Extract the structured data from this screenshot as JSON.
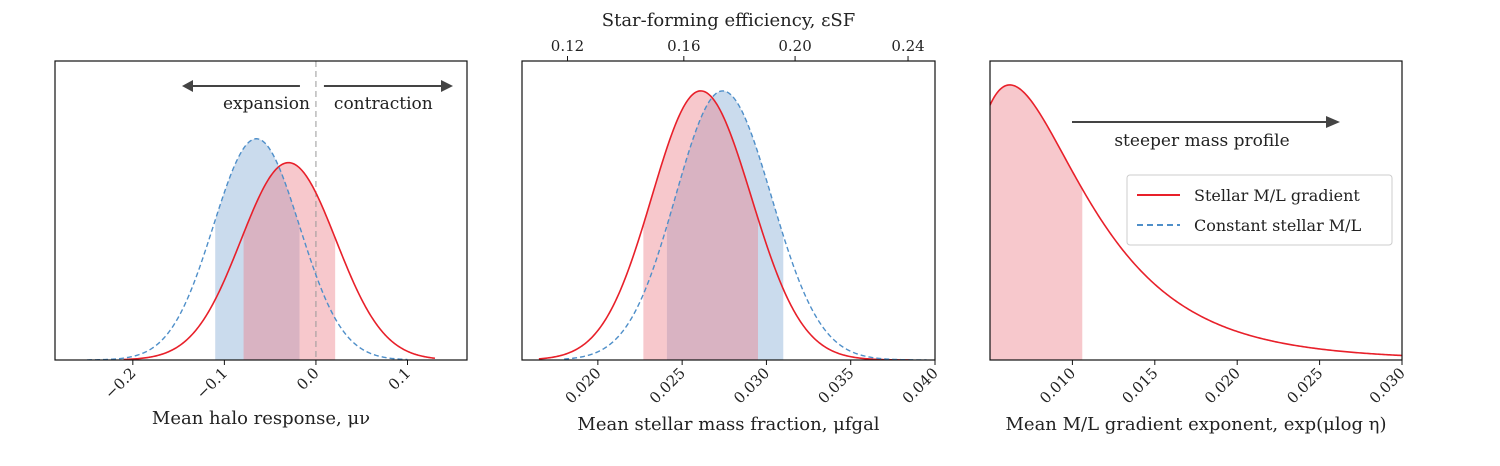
{
  "colors": {
    "red": "#e8202a",
    "blue": "#4f8fc9",
    "red_fill": "#f4b6bb",
    "blue_fill": "#b8cfe7",
    "overlap_fill": "#d9b3c2",
    "arrow": "#444444"
  },
  "legend": {
    "red": "Stellar M/L gradient",
    "blue": "Constant stellar M/L"
  },
  "chart_data": [
    {
      "type": "line",
      "xlabel": "Mean halo response, μν",
      "xlim": [
        -0.285,
        0.165
      ],
      "xticks": [
        -0.2,
        -0.1,
        0.0,
        0.1
      ],
      "xtick_labels": [
        "−0.2",
        "−0.1",
        "0.0",
        "0.1"
      ],
      "annotations": {
        "left": "expansion",
        "right": "contraction",
        "divider_x": 0.0
      },
      "series": [
        {
          "name": "Stellar M/L gradient",
          "style": "solid",
          "mean": -0.03,
          "sigma_left": 0.052,
          "sigma_right": 0.052,
          "peak": 0.66,
          "shade": [
            -0.079,
            0.021
          ],
          "x_range": [
            -0.21,
            0.13
          ]
        },
        {
          "name": "Constant stellar M/L",
          "style": "dashed",
          "mean": -0.065,
          "sigma_left": 0.047,
          "sigma_right": 0.047,
          "peak": 0.74,
          "shade": [
            -0.11,
            -0.018
          ],
          "x_range": [
            -0.25,
            0.1
          ]
        }
      ]
    },
    {
      "type": "line",
      "title": "Star-forming efficiency, εSF",
      "xlabel": "Mean stellar mass fraction, μfgal",
      "xlim": [
        0.0155,
        0.04
      ],
      "xticks": [
        0.02,
        0.025,
        0.03,
        0.035,
        0.04
      ],
      "xtick_labels": [
        "0.020",
        "0.025",
        "0.030",
        "0.035",
        "0.040"
      ],
      "top_ticks": [
        0.12,
        0.16,
        0.2,
        0.24
      ],
      "top_tick_labels": [
        "0.12",
        "0.16",
        "0.20",
        "0.24"
      ],
      "top_tick_positions": [
        0.0182,
        0.0251,
        0.0317,
        0.0384
      ],
      "series": [
        {
          "name": "Stellar M/L gradient",
          "style": "solid",
          "mean": 0.0261,
          "sigma_left": 0.0029,
          "sigma_right": 0.003,
          "peak": 0.9,
          "shade": [
            0.0227,
            0.0295
          ],
          "x_range": [
            0.0165,
            0.0385
          ]
        },
        {
          "name": "Constant stellar M/L",
          "style": "dashed",
          "mean": 0.0274,
          "sigma_left": 0.0028,
          "sigma_right": 0.0029,
          "peak": 0.9,
          "shade": [
            0.0241,
            0.031
          ],
          "x_range": [
            0.018,
            0.0395
          ]
        }
      ]
    },
    {
      "type": "line",
      "xlabel": "Mean M/L gradient exponent, exp(μlog η)",
      "xlim": [
        0.005,
        0.03
      ],
      "xticks": [
        0.01,
        0.015,
        0.02,
        0.025,
        0.03
      ],
      "xtick_labels": [
        "0.010",
        "0.015",
        "0.020",
        "0.025",
        "0.030"
      ],
      "annotations": {
        "arrow_text": "steeper mass profile"
      },
      "series": [
        {
          "name": "Stellar M/L gradient",
          "style": "solid",
          "lognormal": true,
          "mode": 0.0062,
          "s": 0.55,
          "peak": 0.92,
          "shade": [
            0.005,
            0.0106
          ],
          "x_range": [
            0.005,
            0.03
          ]
        }
      ]
    }
  ]
}
